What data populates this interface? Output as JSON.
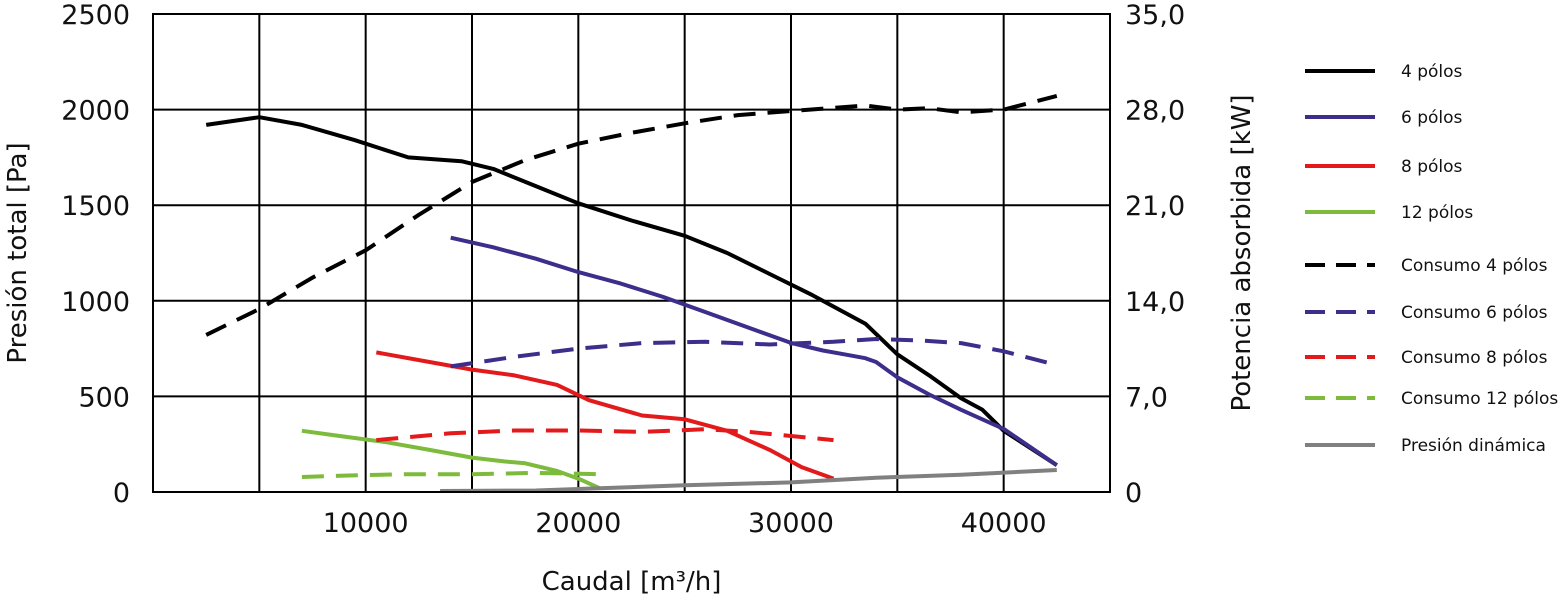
{
  "chart_data": {
    "type": "line",
    "xlabel": "Caudal [m³/h]",
    "ylabel_left": "Presión total [Pa]",
    "ylabel_right": "Potencia absorbida [kW]",
    "xlim": [
      0,
      45000
    ],
    "ylim_left": [
      0,
      2500
    ],
    "ylim_right": [
      0,
      35.0
    ],
    "x_ticks": [
      10000,
      20000,
      30000,
      40000
    ],
    "x_tick_labels": [
      "10000",
      "20000",
      "30000",
      "40000"
    ],
    "y_left_ticks": [
      0,
      500,
      1000,
      1500,
      2000,
      2500
    ],
    "y_left_tick_labels": [
      "0",
      "500",
      "1000",
      "1500",
      "2000",
      "2500"
    ],
    "y_right_ticks": [
      0,
      7.0,
      14.0,
      21.0,
      28.0,
      35.0
    ],
    "y_right_tick_labels": [
      "0",
      "7,0",
      "14,0",
      "21,0",
      "28,0",
      "35,0"
    ],
    "grid": true,
    "legend_position": "right",
    "series": [
      {
        "name": "4 pólos",
        "axis": "left",
        "color": "#000000",
        "dash": false,
        "x": [
          2500,
          5000,
          7000,
          9500,
          12000,
          14500,
          16000,
          18000,
          20000,
          22500,
          25000,
          27000,
          29000,
          31000,
          33500,
          35000,
          36500,
          38000,
          39000,
          40000,
          42500
        ],
        "y": [
          1920,
          1960,
          1920,
          1840,
          1750,
          1730,
          1690,
          1600,
          1510,
          1420,
          1340,
          1250,
          1140,
          1030,
          880,
          720,
          610,
          490,
          430,
          320,
          140
        ]
      },
      {
        "name": "6 pólos",
        "axis": "left",
        "color": "#3d2e8c",
        "dash": false,
        "x": [
          14000,
          16000,
          18000,
          20000,
          22000,
          24000,
          26000,
          28000,
          30000,
          31500,
          32500,
          33500,
          34000,
          35000,
          36500,
          38000,
          40000,
          42500
        ],
        "y": [
          1330,
          1280,
          1220,
          1150,
          1090,
          1020,
          940,
          860,
          780,
          740,
          720,
          700,
          680,
          600,
          510,
          430,
          330,
          140
        ]
      },
      {
        "name": "8 pólos",
        "axis": "left",
        "color": "#e31a1c",
        "dash": false,
        "x": [
          10500,
          13000,
          15000,
          17000,
          19000,
          20500,
          23000,
          25000,
          27000,
          29000,
          30500,
          32000
        ],
        "y": [
          730,
          680,
          640,
          610,
          560,
          480,
          400,
          380,
          320,
          220,
          130,
          70
        ]
      },
      {
        "name": "12 pólos",
        "axis": "left",
        "color": "#7dbb3c",
        "dash": false,
        "x": [
          7000,
          9000,
          11000,
          13000,
          15000,
          16500,
          17500,
          19000,
          20000,
          21000
        ],
        "y": [
          320,
          290,
          260,
          220,
          180,
          160,
          150,
          110,
          70,
          20
        ]
      },
      {
        "name": "Consumo 4 pólos",
        "axis": "right",
        "color": "#000000",
        "dash": true,
        "x": [
          2500,
          5000,
          7500,
          10000,
          12500,
          15000,
          17500,
          20000,
          22500,
          25000,
          27500,
          30000,
          33500,
          35000,
          36500,
          38000,
          40000,
          42500
        ],
        "y": [
          11.5,
          13.4,
          15.7,
          17.7,
          20.3,
          22.7,
          24.3,
          25.5,
          26.3,
          27.0,
          27.6,
          27.9,
          28.3,
          28.0,
          28.1,
          27.8,
          28.0,
          29.0
        ]
      },
      {
        "name": "Consumo 6 pólos",
        "axis": "right",
        "color": "#3d2e8c",
        "dash": true,
        "x": [
          14000,
          17000,
          20000,
          23000,
          26000,
          29000,
          32000,
          34000,
          36000,
          38000,
          40000,
          42500
        ],
        "y": [
          9.2,
          9.9,
          10.5,
          10.9,
          11.0,
          10.8,
          11.0,
          11.2,
          11.1,
          10.9,
          10.3,
          9.3
        ]
      },
      {
        "name": "Consumo 8 pólos",
        "axis": "right",
        "color": "#e31a1c",
        "dash": true,
        "x": [
          10500,
          14000,
          17000,
          20000,
          23000,
          26000,
          28000,
          30000,
          32000
        ],
        "y": [
          3.8,
          4.3,
          4.5,
          4.5,
          4.4,
          4.6,
          4.4,
          4.1,
          3.8
        ]
      },
      {
        "name": "Consumo 12 pólos",
        "axis": "right",
        "color": "#7dbb3c",
        "dash": true,
        "x": [
          7000,
          9000,
          12000,
          15000,
          18000,
          21000
        ],
        "y": [
          1.1,
          1.2,
          1.3,
          1.3,
          1.4,
          1.3
        ]
      },
      {
        "name": "Presión dinámica",
        "axis": "left",
        "color": "#808080",
        "dash": false,
        "x": [
          13500,
          18000,
          21000,
          25000,
          30000,
          34000,
          38000,
          42500
        ],
        "y": [
          5,
          8,
          20,
          35,
          50,
          75,
          90,
          115
        ]
      }
    ]
  }
}
